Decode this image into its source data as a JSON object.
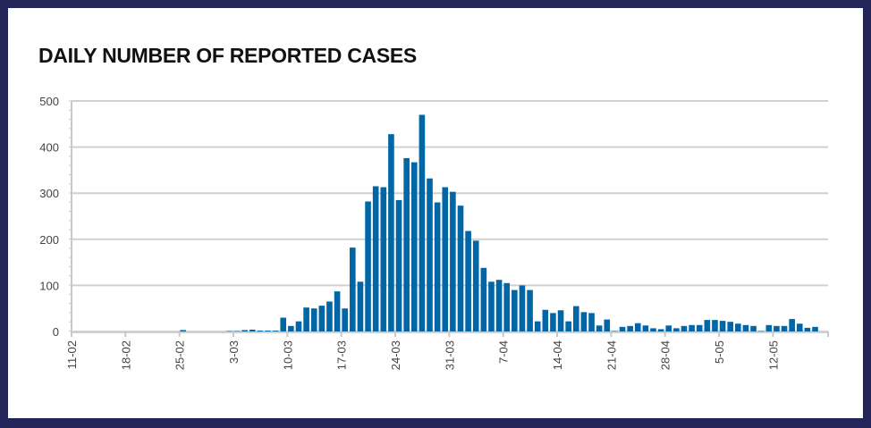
{
  "chart_data": {
    "type": "bar",
    "title": "DAILY NUMBER OF REPORTED CASES",
    "xlabel": "",
    "ylabel": "",
    "ylim": [
      0,
      500
    ],
    "yticks": [
      0,
      100,
      200,
      300,
      400,
      500
    ],
    "grid": true,
    "bar_color": "#0066a6",
    "start_day": "11-02",
    "xtick_labels": [
      "11-02",
      "18-02",
      "25-02",
      "3-03",
      "10-03",
      "17-03",
      "24-03",
      "31-03",
      "7-04",
      "14-04",
      "21-04",
      "28-04",
      "5-05",
      "12-05"
    ],
    "values": [
      0,
      0,
      0,
      0,
      0,
      0,
      0,
      0,
      0,
      0,
      0,
      0,
      0,
      0,
      3,
      0,
      0,
      0,
      0,
      0,
      1,
      1,
      3,
      4,
      2,
      2,
      2,
      30,
      12,
      22,
      52,
      50,
      56,
      65,
      87,
      50,
      182,
      108,
      282,
      315,
      313,
      428,
      285,
      376,
      367,
      470,
      332,
      280,
      313,
      303,
      273,
      218,
      197,
      138,
      108,
      112,
      105,
      90,
      100,
      90,
      22,
      47,
      40,
      46,
      22,
      55,
      42,
      40,
      13,
      26,
      1,
      10,
      12,
      18,
      13,
      7,
      5,
      13,
      7,
      12,
      14,
      14,
      25,
      25,
      23,
      21,
      17,
      14,
      12,
      1,
      14,
      12,
      12,
      27,
      17,
      8,
      10
    ]
  }
}
